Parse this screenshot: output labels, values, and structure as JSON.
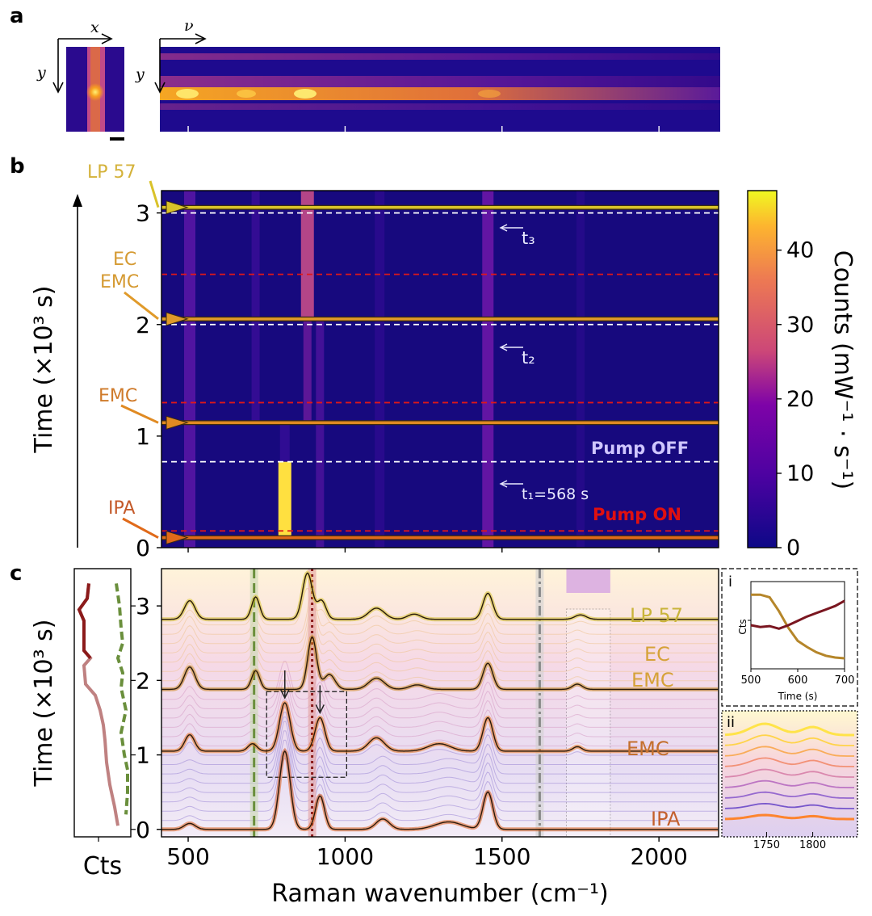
{
  "panel_labels": {
    "a": "a",
    "b": "b",
    "c": "c"
  },
  "panel_a": {
    "axis_x": "x",
    "axis_y": "y",
    "axis_nu": "ν",
    "axis_y2": "y"
  },
  "panel_b": {
    "ylabel": "Time (×10³ s)",
    "colorbar_label": "Counts (mW⁻¹ · s⁻¹)",
    "annotations": {
      "t3": "t₃",
      "t2": "t₂",
      "t1": "t₁=568 s",
      "pump_off": "Pump OFF",
      "pump_on": "Pump ON"
    },
    "solvent_labels": [
      {
        "text": "LP 57",
        "color": "#d4b23a"
      },
      {
        "text": "EC",
        "color": "#d59a32"
      },
      {
        "text": "EMC",
        "color": "#d59a32"
      },
      {
        "text": "EMC",
        "color": "#cf7a2a"
      },
      {
        "text": "IPA",
        "color": "#c45a2a"
      }
    ]
  },
  "panel_c": {
    "ylabel": "Time (×10³ s)",
    "xlabel": "Raman wavenumber (cm⁻¹)",
    "side_xlabel": "Cts",
    "trace_labels": [
      {
        "text": "LP 57",
        "color": "#c9b43a"
      },
      {
        "text": "EC",
        "color": "#d6a238"
      },
      {
        "text": "EMC",
        "color": "#d6a238"
      },
      {
        "text": "EMC",
        "color": "#c4702e"
      },
      {
        "text": "IPA",
        "color": "#c4602e"
      }
    ],
    "inset_i": {
      "label": "i",
      "ylabel": "Cts",
      "xlabel": "Time (s)"
    },
    "inset_ii": {
      "label": "ii"
    }
  },
  "chart_data": [
    {
      "id": "panel-b-heatmap",
      "type": "heatmap",
      "xlabel": "",
      "ylabel": "Time (×10³ s)",
      "x_ticks": [
        500,
        1000,
        1500,
        2000
      ],
      "xlim": [
        415,
        2190
      ],
      "y_ticks": [
        0,
        1,
        2,
        3
      ],
      "ylim": [
        0,
        3.2
      ],
      "colorbar": {
        "label": "Counts (mW⁻¹ · s⁻¹)",
        "ticks": [
          0,
          10,
          20,
          30,
          40
        ],
        "range": [
          0,
          48
        ]
      },
      "reference_times_ks": {
        "t1": 0.568,
        "t2": 1.7,
        "t3": 2.85
      },
      "pump_on_line_ks": 0.15,
      "pump_off_line_ks": 0.77,
      "red_dashed_lines_ks": [
        0.15,
        1.3,
        2.45
      ],
      "white_dashed_lines_ks": [
        0.77,
        2.0,
        3.0
      ],
      "solvent_switch_times_ks": [
        0.09,
        1.12,
        2.05,
        3.05
      ]
    },
    {
      "id": "panel-c-waterfall",
      "type": "line",
      "xlabel": "Raman wavenumber (cm⁻¹)",
      "ylabel": "Time (×10³ s)",
      "x_ticks": [
        500,
        1000,
        1500,
        2000
      ],
      "xlim": [
        415,
        2190
      ],
      "y_ticks": [
        0,
        1,
        2,
        3
      ],
      "ylim": [
        -0.1,
        3.5
      ],
      "vertical_markers_cm": {
        "green_dashed": 710,
        "red_dotted": 895,
        "gray_dashdot": 1620
      },
      "shaded_band_cm": [
        1705,
        1845
      ],
      "zoom_box_cm": [
        750,
        1005
      ],
      "zoom_box_y_ks": [
        0.7,
        1.85
      ],
      "arrow_peaks_cm": [
        808,
        920
      ],
      "series": [
        {
          "name": "IPA",
          "offset_ks": 0.0,
          "color": "#e0601e",
          "peaks": [
            [
              505,
              0.08,
              25
            ],
            [
              808,
              1.05,
              24
            ],
            [
              920,
              0.45,
              20
            ],
            [
              1120,
              0.14,
              30
            ],
            [
              1330,
              0.1,
              60
            ],
            [
              1455,
              0.5,
              22
            ]
          ]
        },
        {
          "name": "EMC",
          "offset_ks": 1.05,
          "color": "#e8741e",
          "peaks": [
            [
              505,
              0.22,
              22
            ],
            [
              705,
              0.1,
              20
            ],
            [
              808,
              0.65,
              24
            ],
            [
              920,
              0.45,
              22
            ],
            [
              1100,
              0.18,
              35
            ],
            [
              1300,
              0.1,
              50
            ],
            [
              1455,
              0.45,
              22
            ],
            [
              1740,
              0.06,
              20
            ]
          ]
        },
        {
          "name": "EC EMC",
          "offset_ks": 1.88,
          "color": "#c98a1f",
          "peaks": [
            [
              505,
              0.3,
              24
            ],
            [
              715,
              0.25,
              18
            ],
            [
              895,
              0.7,
              20
            ],
            [
              950,
              0.2,
              25
            ],
            [
              1100,
              0.15,
              35
            ],
            [
              1230,
              0.06,
              35
            ],
            [
              1455,
              0.35,
              22
            ],
            [
              1740,
              0.07,
              22
            ]
          ]
        },
        {
          "name": "LP 57",
          "offset_ks": 2.82,
          "color": "#d6c12a",
          "peaks": [
            [
              505,
              0.25,
              24
            ],
            [
              715,
              0.3,
              18
            ],
            [
              880,
              0.62,
              22
            ],
            [
              925,
              0.25,
              20
            ],
            [
              1100,
              0.15,
              35
            ],
            [
              1220,
              0.07,
              30
            ],
            [
              1455,
              0.35,
              22
            ],
            [
              1750,
              0.06,
              25
            ]
          ]
        }
      ]
    },
    {
      "id": "panel-c-side",
      "type": "line",
      "xlabel": "Cts",
      "series": [
        {
          "name": "green-dashed-marker-counts",
          "color": "#6a8f3c"
        },
        {
          "name": "red-dotted-marker-counts",
          "color": "#8b1a1a"
        }
      ]
    },
    {
      "id": "inset-i",
      "type": "line",
      "xlabel": "Time (s)",
      "ylabel": "Cts",
      "x_ticks": [
        500,
        600,
        700
      ],
      "xlim": [
        500,
        700
      ],
      "series": [
        {
          "name": "gold",
          "color": "#b5862a",
          "x": [
            500,
            520,
            540,
            560,
            580,
            600,
            620,
            640,
            660,
            680,
            700
          ],
          "y": [
            0.85,
            0.85,
            0.82,
            0.66,
            0.47,
            0.32,
            0.25,
            0.19,
            0.15,
            0.13,
            0.12
          ]
        },
        {
          "name": "dark-red",
          "color": "#7a1620",
          "x": [
            500,
            520,
            540,
            560,
            580,
            600,
            620,
            640,
            660,
            680,
            700
          ],
          "y": [
            0.5,
            0.48,
            0.49,
            0.46,
            0.5,
            0.55,
            0.6,
            0.64,
            0.68,
            0.72,
            0.78
          ]
        }
      ]
    },
    {
      "id": "inset-ii",
      "type": "line",
      "x_ticks": [
        1750,
        1800
      ],
      "xlim": [
        1705,
        1845
      ]
    }
  ]
}
